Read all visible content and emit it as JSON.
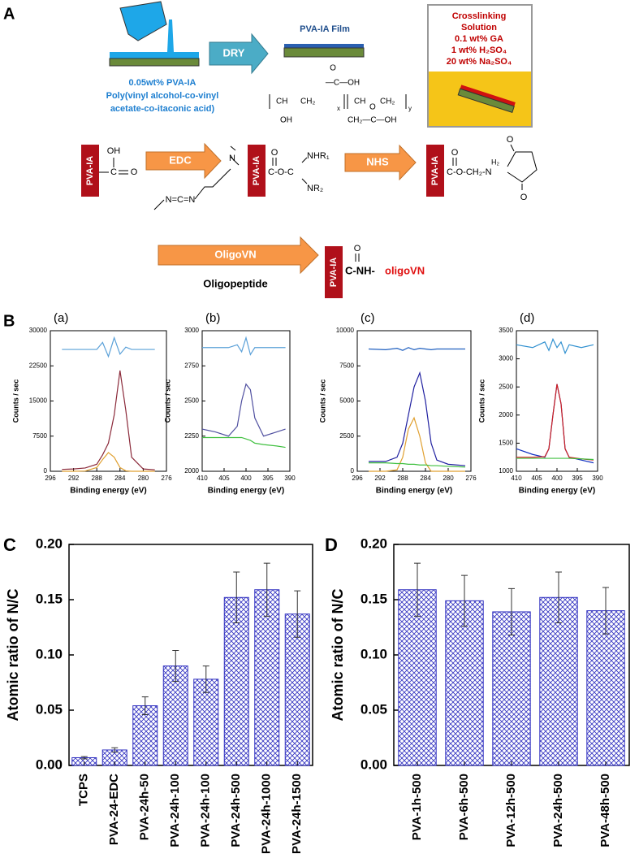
{
  "panel_labels": [
    "A",
    "B",
    "C",
    "D"
  ],
  "scheme": {
    "coating": [
      "0.05wt% PVA-IA",
      "Poly(vinyl  alcohol-co-vinyl",
      "acetate-co-itaconic acid)"
    ],
    "dry": "DRY",
    "film": "PVA-IA Film",
    "crosslinking": [
      "Crosslinking",
      "Solution",
      "0.1 wt% GA",
      "1 wt% H₂SO₄",
      "20 wt% Na₂SO₄"
    ],
    "block": "PVA-IA",
    "reagents": [
      "EDC",
      "NHS",
      "OligoVN"
    ],
    "oligopeptide": "Oligopeptide",
    "product": [
      "C-NH-",
      "oligoVN"
    ],
    "atoms": [
      "O",
      "OH",
      "C",
      "CH₂",
      "CH",
      "x",
      "y",
      "N=C=N",
      "NHR₁",
      "NR₂",
      "H₂",
      "N",
      "C-O-C",
      "C-O-CH₂-N",
      "—C—OH",
      "CH₂—C—OH"
    ]
  },
  "chart_data": [
    {
      "type": "line",
      "title": "(a)",
      "xlabel": "Binding energy (eV)",
      "ylabel": "Counts / sec",
      "x": [
        294,
        292,
        290,
        288,
        287,
        286,
        285,
        284,
        283,
        282,
        280,
        278
      ],
      "xlim": [
        296,
        276
      ],
      "xticks": [
        296,
        292,
        288,
        284,
        280,
        276
      ],
      "ylim": [
        0,
        30000
      ],
      "yticks": [
        0,
        7500,
        15000,
        22500,
        30000
      ],
      "series": [
        {
          "color": "#8b2a3a",
          "values": [
            400,
            500,
            700,
            1500,
            3500,
            6000,
            12000,
            21500,
            13000,
            3000,
            500,
            300
          ]
        },
        {
          "color": "#e0a030",
          "values": [
            0,
            0,
            50,
            800,
            2500,
            4000,
            3000,
            800,
            100,
            0,
            0,
            0
          ]
        },
        {
          "color": "#5aa0d8",
          "values": [
            26000,
            26000,
            26000,
            26000,
            27500,
            24500,
            28500,
            25000,
            26500,
            26000,
            26000,
            26000
          ]
        }
      ]
    },
    {
      "type": "line",
      "title": "(b)",
      "xlabel": "Binding energy (eV)",
      "ylabel": "Counts / sec",
      "x": [
        410,
        407,
        404,
        402,
        401,
        400,
        399,
        398,
        396,
        393,
        391
      ],
      "xlim": [
        410,
        390
      ],
      "xticks": [
        410,
        405,
        400,
        395,
        390
      ],
      "ylim": [
        2000,
        3000
      ],
      "yticks": [
        2000,
        2250,
        2500,
        2750,
        3000
      ],
      "series": [
        {
          "color": "#5050a0",
          "values": [
            2300,
            2280,
            2250,
            2320,
            2500,
            2620,
            2580,
            2380,
            2250,
            2280,
            2300
          ]
        },
        {
          "color": "#40c040",
          "values": [
            2240,
            2240,
            2240,
            2240,
            2240,
            2230,
            2220,
            2200,
            2190,
            2180,
            2170
          ]
        },
        {
          "color": "#5aa0d8",
          "values": [
            2880,
            2880,
            2880,
            2900,
            2850,
            2950,
            2830,
            2880,
            2880,
            2880,
            2880
          ]
        }
      ]
    },
    {
      "type": "line",
      "title": "(c)",
      "xlabel": "Binding energy (eV)",
      "ylabel": "Counts / sec",
      "x": [
        294,
        291,
        289,
        288,
        287,
        286,
        285,
        284,
        283,
        282,
        280,
        277
      ],
      "xlim": [
        296,
        276
      ],
      "xticks": [
        296,
        292,
        288,
        284,
        280,
        276
      ],
      "ylim": [
        0,
        10000
      ],
      "yticks": [
        0,
        2500,
        5000,
        7500,
        10000
      ],
      "series": [
        {
          "color": "#2020a0",
          "values": [
            700,
            700,
            1000,
            2000,
            4000,
            6000,
            7000,
            5000,
            2000,
            800,
            500,
            400
          ]
        },
        {
          "color": "#e0a030",
          "values": [
            0,
            0,
            100,
            1000,
            3000,
            3800,
            2500,
            600,
            0,
            0,
            0,
            0
          ]
        },
        {
          "color": "#40c040",
          "values": [
            600,
            600,
            550,
            550,
            500,
            500,
            450,
            450,
            400,
            400,
            350,
            300
          ]
        },
        {
          "color": "#2060c0",
          "values": [
            8700,
            8650,
            8750,
            8600,
            8800,
            8650,
            8750,
            8700,
            8650,
            8700,
            8700,
            8700
          ]
        }
      ]
    },
    {
      "type": "line",
      "title": "(d)",
      "xlabel": "Binding energy (eV)",
      "ylabel": "Counts / sec",
      "x": [
        410,
        406,
        403,
        402,
        401,
        400,
        399,
        398,
        397,
        394,
        391
      ],
      "xlim": [
        410,
        390
      ],
      "xticks": [
        410,
        405,
        400,
        395,
        390
      ],
      "ylim": [
        1000,
        3500
      ],
      "yticks": [
        1000,
        1500,
        2000,
        2500,
        3000,
        3500
      ],
      "series": [
        {
          "color": "#1030c0",
          "values": [
            1400,
            1300,
            1250,
            1400,
            2000,
            2550,
            2200,
            1400,
            1250,
            1200,
            1150
          ]
        },
        {
          "color": "#d02020",
          "values": [
            1250,
            1250,
            1260,
            1400,
            2000,
            2550,
            2200,
            1400,
            1250,
            1220,
            1200
          ]
        },
        {
          "color": "#40c040",
          "values": [
            1230,
            1230,
            1230,
            1230,
            1230,
            1230,
            1230,
            1230,
            1230,
            1220,
            1210
          ]
        },
        {
          "color": "#3090d0",
          "values": [
            3250,
            3200,
            3300,
            3150,
            3350,
            3200,
            3300,
            3100,
            3250,
            3200,
            3250
          ]
        }
      ]
    },
    {
      "type": "bar",
      "ylabel": "Atomic ratio of N/C",
      "color": "#3030c0",
      "categories": [
        "TCPS",
        "PVA-24-EDC",
        "PVA-24h-50",
        "PVA-24h-100",
        "PVA-24h-100",
        "PVA-24h-500",
        "PVA-24h-1000",
        "PVA-24h-1500"
      ],
      "values": [
        0.007,
        0.014,
        0.054,
        0.09,
        0.078,
        0.152,
        0.159,
        0.137
      ],
      "errors": [
        0.001,
        0.002,
        0.008,
        0.014,
        0.012,
        0.023,
        0.024,
        0.021
      ],
      "ylim": [
        0,
        0.2
      ],
      "yticks": [
        {
          "value": 0,
          "label": "0.00"
        },
        {
          "value": 0.05,
          "label": "0.05"
        },
        {
          "value": 0.1,
          "label": "0.10"
        },
        {
          "value": 0.15,
          "label": "0.15"
        },
        {
          "value": 0.2,
          "label": "0.20"
        }
      ]
    },
    {
      "type": "bar",
      "ylabel": "Atomic ratio of N/C",
      "color": "#3030c0",
      "categories": [
        "PVA-1h-500",
        "PVA-6h-500",
        "PVA-12h-500",
        "PVA-24h-500",
        "PVA-48h-500"
      ],
      "values": [
        0.159,
        0.149,
        0.139,
        0.152,
        0.14
      ],
      "errors": [
        0.024,
        0.023,
        0.021,
        0.023,
        0.021
      ],
      "ylim": [
        0,
        0.2
      ],
      "yticks": [
        {
          "value": 0,
          "label": "0.00"
        },
        {
          "value": 0.05,
          "label": "0.05"
        },
        {
          "value": 0.1,
          "label": "0.10"
        },
        {
          "value": 0.15,
          "label": "0.15"
        },
        {
          "value": 0.2,
          "label": "0.20"
        }
      ]
    }
  ]
}
